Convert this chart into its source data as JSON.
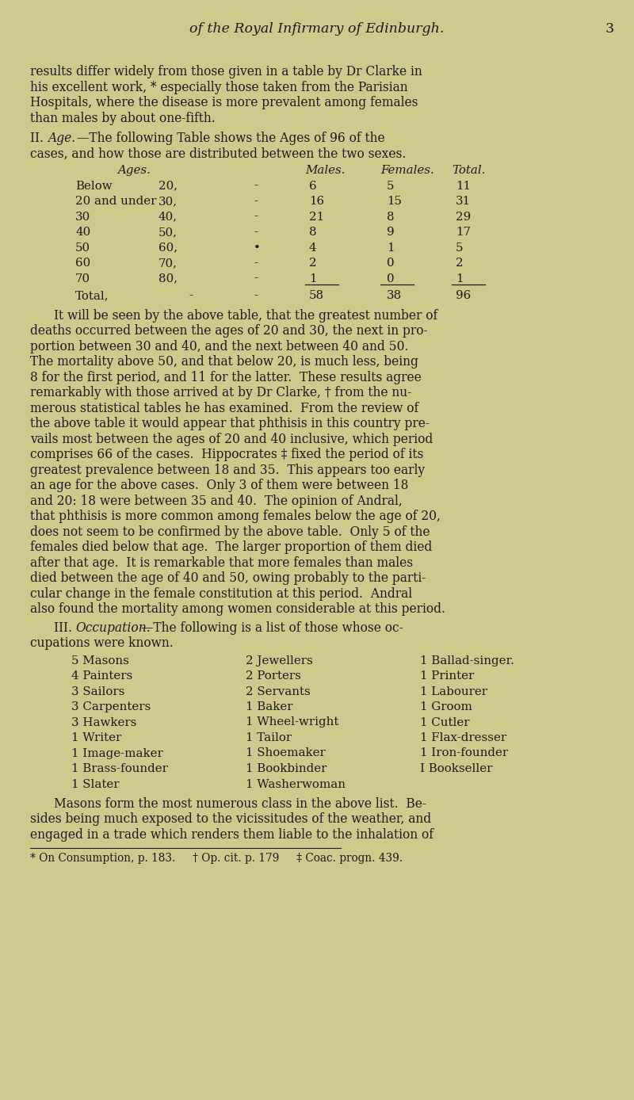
{
  "background_color": "#cfc98e",
  "page_width": 8.0,
  "page_height": 13.88,
  "header_italic": "of the Royal Infirmary of Edinburgh.",
  "header_page_num": "3",
  "occupation_col1": [
    "5 Masons",
    "4 Painters",
    "3 Sailors",
    "3 Carpenters",
    "3 Hawkers",
    "1 Writer",
    "1 Image-maker",
    "1 Brass-founder",
    "1 Slater"
  ],
  "occupation_col2": [
    "2 Jewellers",
    "2 Porters",
    "2 Servants",
    "1 Baker",
    "1 Wheel-wright",
    "1 Tailor",
    "1 Shoemaker",
    "1 Bookbinder",
    "1 Washerwoman"
  ],
  "occupation_col3": [
    "1 Ballad-singer.",
    "1 Printer",
    "1 Labourer",
    "1 Groom",
    "1 Cutler",
    "1 Flax-dresser",
    "1 Iron-founder",
    "I Bookseller"
  ],
  "footnote": "* On Consumption, p. 183.     † Op. cit. p. 179     ‡ Coac. progn. 439.",
  "para1_lines": [
    "results differ widely from those given in a table by Dr Clarke in",
    "his excellent work, * especially those taken from the Parisian",
    "Hospitals, where the disease is more prevalent among females",
    "than males by about one-fifth."
  ],
  "body2_lines": [
    "It will be seen by the above table, that the greatest number of",
    "deaths occurred between the ages of 20 and 30, the next in pro-",
    "portion between 30 and 40, and the next between 40 and 50.",
    "The mortality above 50, and that below 20, is much less, being",
    "8 for the first period, and 11 for the latter.  These results agree",
    "remarkably with those arrived at by Dr Clarke, † from the nu-",
    "merous statistical tables he has examined.  From the review of",
    "the above table it would appear that phthisis in this country pre-",
    "vails most between the ages of 20 and 40 inclusive, which period",
    "comprises 66 of the cases.  Hippocrates ‡ fixed the period of its",
    "greatest prevalence between 18 and 35.  This appears too early",
    "an age for the above cases.  Only 3 of them were between 18",
    "and 20: 18 were between 35 and 40.  The opinion of Andral,",
    "that phthisis is more common among females below the age of 20,",
    "does not seem to be confirmed by the above table.  Only 5 of the",
    "females died below that age.  The larger proportion of them died",
    "after that age.  It is remarkable that more females than males",
    "died between the age of 40 and 50, owing probably to the parti-",
    "cular change in the female constitution at this period.  Andral",
    "also found the mortality among women considerable at this period."
  ],
  "final_lines": [
    "Masons form the most numerous class in the above list.  Be-",
    "sides being much exposed to the vicissitudes of the weather, and",
    "engaged in a trade which renders them liable to the inhalation of"
  ]
}
